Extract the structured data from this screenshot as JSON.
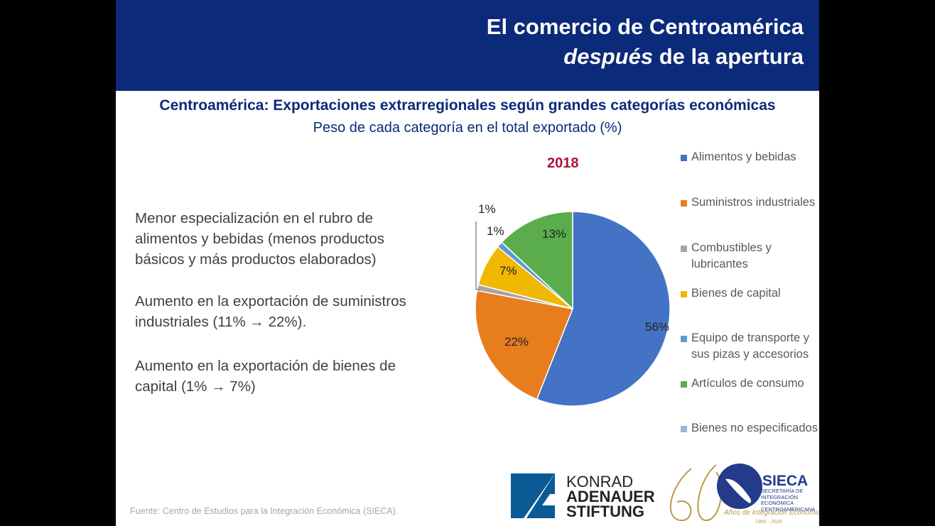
{
  "header": {
    "line1": "El comercio de Centroamérica",
    "line2_italic": "después",
    "line2_rest": " de la apertura"
  },
  "chart_data": {
    "type": "pie",
    "title": "Centroamérica: Exportaciones extrarregionales según grandes categorías económicas",
    "subtitle": "Peso de cada categoría en el total exportado (%)",
    "year_label": "2018",
    "categories": [
      "Alimentos y bebidas",
      "Suministros industriales",
      "Combustibles y lubricantes",
      "Bienes de capital",
      "Equipo de transporte y sus pizas y accesorios",
      "Artículos de consumo",
      "Bienes no especificados"
    ],
    "values": [
      56,
      22,
      1,
      7,
      1,
      13,
      0
    ],
    "data_labels": [
      "56%",
      "22%",
      "1%",
      "7%",
      "1%",
      "13%",
      ""
    ],
    "colors": [
      "#4472c4",
      "#e87d1e",
      "#a5a5a5",
      "#f0b800",
      "#5b9bd5",
      "#5bad4c",
      "#9eb3de"
    ],
    "legend_position": "right"
  },
  "bullets": [
    "Menor especialización en el rubro de alimentos y bebidas (menos productos básicos y más productos elaborados)",
    "Aumento en la exportación de suministros industriales (11% → 22%).",
    "Aumento en la exportación de bienes de capital (1% → 7%)"
  ],
  "source": "Fuente: Centro de Estudios para la Integración Económica (SIECA).",
  "logos": {
    "kas": [
      "KONRAD",
      "ADENAUER",
      "STIFTUNG"
    ],
    "sieca": "SIECA",
    "sieca_sub": "SECRETARÍA DE INTEGRACIÓN ECONÓMICA CENTROAMERICANA",
    "sieca_years": "Años de Integración Económica",
    "sieca_range": "1960 - 2020"
  }
}
